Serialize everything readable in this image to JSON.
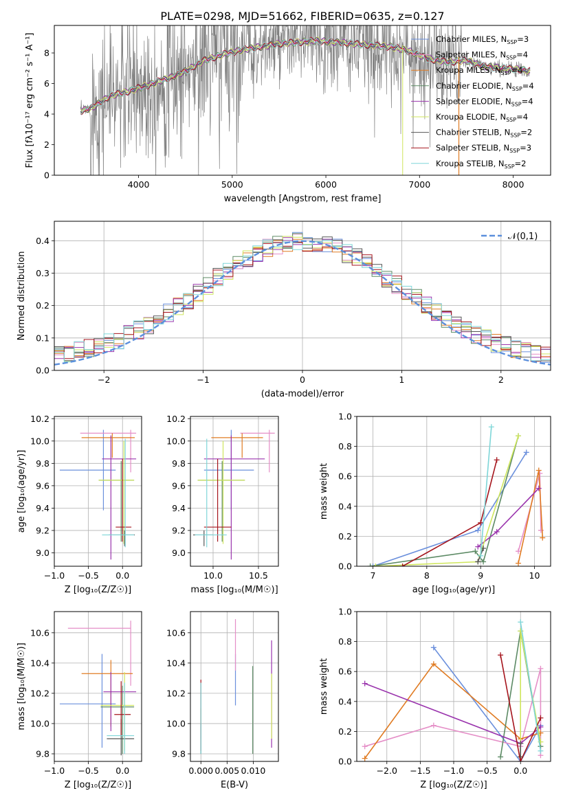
{
  "title": "PLATE=0298, MJD=51662, FIBERID=0635, z=0.127",
  "colors": {
    "Chabrier MILES": "#6a8fdc",
    "Salpeter MILES": "#e58ec7",
    "Kroupa MILES": "#e07b22",
    "Chabrier ELODIE": "#5c8a64",
    "Salpeter ELODIE": "#9a34ad",
    "Kroupa ELODIE": "#cfe65c",
    "Chabrier STELIB": "#555555",
    "Salpeter STELIB": "#a5141c",
    "Kroupa STELIB": "#7ed6d8",
    "spectrum": "#808080",
    "gaussian": "#5b8fdc"
  },
  "chart_data": [
    {
      "id": "spectrum",
      "type": "line",
      "xlabel": "wavelength [Angstrom, rest frame]",
      "ylabel": "Flux [fλ10⁻¹⁷ erg cm⁻² s⁻¹ A⁻¹]",
      "xlim": [
        3100,
        8400
      ],
      "ylim": [
        0,
        9.8
      ],
      "xticks": [
        4000,
        5000,
        6000,
        7000,
        8000
      ],
      "yticks": [
        0,
        2,
        4,
        6,
        8
      ],
      "grid": false,
      "legend_position": "upper-right",
      "legend": [
        {
          "label": "Chabrier MILES, N",
          "sub": "SSP",
          "n": "=3"
        },
        {
          "label": "Salpeter MILES, N",
          "sub": "SSP",
          "n": "=4"
        },
        {
          "label": "Kroupa MILES, N",
          "sub": "SSP",
          "n": "=4"
        },
        {
          "label": "Chabrier ELODIE, N",
          "sub": "SSP",
          "n": "=4"
        },
        {
          "label": "Salpeter ELODIE, N",
          "sub": "SSP",
          "n": "=4"
        },
        {
          "label": "Kroupa ELODIE, N",
          "sub": "SSP",
          "n": "=4"
        },
        {
          "label": "Chabrier STELIB, N",
          "sub": "SSP",
          "n": "=2"
        },
        {
          "label": "Salpeter STELIB, N",
          "sub": "SSP",
          "n": "=3"
        },
        {
          "label": "Kroupa STELIB, N",
          "sub": "SSP",
          "n": "=2"
        }
      ],
      "continuum": [
        [
          3380,
          4.2
        ],
        [
          3500,
          4.4
        ],
        [
          3700,
          5.2
        ],
        [
          3900,
          5.5
        ],
        [
          4100,
          5.9
        ],
        [
          4300,
          6.3
        ],
        [
          4500,
          6.8
        ],
        [
          4700,
          7.5
        ],
        [
          4900,
          7.9
        ],
        [
          5100,
          8.2
        ],
        [
          5300,
          8.4
        ],
        [
          5500,
          8.6
        ],
        [
          5700,
          8.7
        ],
        [
          5900,
          8.8
        ],
        [
          6100,
          8.7
        ],
        [
          6300,
          8.6
        ],
        [
          6500,
          8.5
        ],
        [
          6700,
          8.4
        ],
        [
          6900,
          8.1
        ],
        [
          7100,
          7.6
        ],
        [
          7300,
          7.4
        ],
        [
          7500,
          7.5
        ],
        [
          7700,
          7.1
        ],
        [
          7900,
          7.0
        ],
        [
          8100,
          6.9
        ],
        [
          8180,
          6.8
        ]
      ]
    },
    {
      "id": "residuals",
      "type": "histogram",
      "xlabel": "(data-model)/error",
      "ylabel": "Normed distribution",
      "xlim": [
        -2.5,
        2.5
      ],
      "ylim": [
        0,
        0.46
      ],
      "xticks": [
        -2,
        -1,
        0,
        1,
        2
      ],
      "yticks": [
        0.0,
        0.1,
        0.2,
        0.3,
        0.4
      ],
      "grid": true,
      "legend_label": "𝒩(0,1)",
      "legend_position": "upper-right",
      "bin_width": 0.1
    },
    {
      "id": "age-vs-Z",
      "type": "errorbar",
      "xlabel": "Z [log₁₀(Z/Z☉)]",
      "ylabel": "age  [log₁₀(age/yr)]",
      "xlim": [
        -1.0,
        0.28
      ],
      "ylim": [
        8.88,
        10.22
      ],
      "xticks": [
        -1.0,
        -0.5,
        0.0
      ],
      "yticks": [
        9.0,
        9.2,
        9.4,
        9.6,
        9.8,
        10.0,
        10.2
      ],
      "grid": true,
      "points": [
        {
          "series": "Chabrier MILES",
          "x": -0.28,
          "xlo": -0.92,
          "xhi": -0.1,
          "y": 9.74,
          "ylo": 9.38,
          "yhi": 10.1
        },
        {
          "series": "Salpeter MILES",
          "x": 0.12,
          "xlo": -0.62,
          "xhi": 0.2,
          "y": 10.07,
          "ylo": 9.72,
          "yhi": 10.1
        },
        {
          "series": "Kroupa MILES",
          "x": -0.15,
          "xlo": -0.6,
          "xhi": 0.18,
          "y": 10.03,
          "ylo": 9.85,
          "yhi": 10.07
        },
        {
          "series": "Chabrier ELODIE",
          "x": -0.02,
          "xlo": -0.35,
          "xhi": 0.17,
          "y": 9.65,
          "ylo": 9.1,
          "yhi": 9.82
        },
        {
          "series": "Salpeter ELODIE",
          "x": -0.17,
          "xlo": -0.3,
          "xhi": 0.2,
          "y": 9.84,
          "ylo": 8.94,
          "yhi": 10.05
        },
        {
          "series": "Kroupa ELODIE",
          "x": 0.02,
          "xlo": -0.35,
          "xhi": 0.17,
          "y": 9.65,
          "ylo": 9.08,
          "yhi": 10.0
        },
        {
          "series": "Chabrier STELIB",
          "x": 0.03,
          "xlo": -0.2,
          "xhi": 0.18,
          "y": 9.16,
          "ylo": 9.06,
          "yhi": 9.2
        },
        {
          "series": "Salpeter STELIB",
          "x": 0.0,
          "xlo": -0.1,
          "xhi": 0.13,
          "y": 9.23,
          "ylo": 9.1,
          "yhi": 9.84
        },
        {
          "series": "Kroupa STELIB",
          "x": 0.04,
          "xlo": -0.3,
          "xhi": 0.17,
          "y": 9.16,
          "ylo": 9.05,
          "yhi": 10.02
        }
      ]
    },
    {
      "id": "age-vs-mass",
      "type": "errorbar",
      "xlabel": "mass [log₁₀(M/M☉)]",
      "ylabel": "",
      "xlim": [
        9.75,
        10.72
      ],
      "ylim": [
        8.88,
        10.22
      ],
      "xticks": [
        10.0,
        10.5
      ],
      "yticks": [
        9.0,
        9.2,
        9.4,
        9.6,
        9.8,
        10.0,
        10.2
      ],
      "grid": true,
      "points": [
        {
          "series": "Chabrier MILES",
          "x": 10.2,
          "xlo": 9.9,
          "xhi": 10.45,
          "y": 9.74,
          "ylo": 9.38,
          "yhi": 10.1
        },
        {
          "series": "Salpeter MILES",
          "x": 10.62,
          "xlo": 10.3,
          "xhi": 10.68,
          "y": 10.07,
          "ylo": 9.72,
          "yhi": 10.1
        },
        {
          "series": "Kroupa MILES",
          "x": 10.32,
          "xlo": 9.98,
          "xhi": 10.55,
          "y": 10.03,
          "ylo": 9.85,
          "yhi": 10.07
        },
        {
          "series": "Chabrier ELODIE",
          "x": 10.1,
          "xlo": 9.83,
          "xhi": 10.35,
          "y": 9.65,
          "ylo": 9.1,
          "yhi": 9.82
        },
        {
          "series": "Salpeter ELODIE",
          "x": 10.2,
          "xlo": 9.9,
          "xhi": 10.57,
          "y": 9.84,
          "ylo": 8.94,
          "yhi": 10.05
        },
        {
          "series": "Kroupa ELODIE",
          "x": 10.11,
          "xlo": 9.83,
          "xhi": 10.35,
          "y": 9.65,
          "ylo": 9.08,
          "yhi": 10.0
        },
        {
          "series": "Chabrier STELIB",
          "x": 9.9,
          "xlo": 9.78,
          "xhi": 10.0,
          "y": 9.16,
          "ylo": 9.06,
          "yhi": 9.2
        },
        {
          "series": "Salpeter STELIB",
          "x": 10.05,
          "xlo": 9.9,
          "xhi": 10.2,
          "y": 9.23,
          "ylo": 9.1,
          "yhi": 9.84
        },
        {
          "series": "Kroupa STELIB",
          "x": 9.93,
          "xlo": 9.8,
          "xhi": 10.15,
          "y": 9.16,
          "ylo": 9.05,
          "yhi": 10.02
        }
      ]
    },
    {
      "id": "weight-vs-age",
      "type": "line",
      "xlabel": "age  [log₁₀(age/yr)]",
      "ylabel": "mass weight",
      "xlim": [
        6.7,
        10.3
      ],
      "ylim": [
        0.0,
        1.0
      ],
      "xticks": [
        7,
        8,
        9,
        10
      ],
      "yticks": [
        0.0,
        0.2,
        0.4,
        0.6,
        0.8,
        1.0
      ],
      "grid": true,
      "series": [
        {
          "name": "Chabrier MILES",
          "points": [
            [
              7.0,
              0.0
            ],
            [
              8.95,
              0.24
            ],
            [
              9.85,
              0.76
            ]
          ]
        },
        {
          "name": "Salpeter MILES",
          "points": [
            [
              9.7,
              0.1
            ],
            [
              10.1,
              0.62
            ],
            [
              10.12,
              0.24
            ]
          ]
        },
        {
          "name": "Kroupa MILES",
          "points": [
            [
              9.7,
              0.02
            ],
            [
              10.08,
              0.64
            ],
            [
              10.15,
              0.19
            ]
          ]
        },
        {
          "name": "Chabrier ELODIE",
          "points": [
            [
              6.95,
              0.0
            ],
            [
              8.9,
              0.1
            ],
            [
              9.05,
              0.03
            ],
            [
              9.7,
              0.87
            ]
          ]
        },
        {
          "name": "Salpeter ELODIE",
          "points": [
            [
              8.95,
              0.13
            ],
            [
              9.3,
              0.23
            ],
            [
              10.08,
              0.52
            ]
          ]
        },
        {
          "name": "Kroupa ELODIE",
          "points": [
            [
              7.05,
              0.0
            ],
            [
              8.95,
              0.03
            ],
            [
              9.7,
              0.87
            ]
          ]
        },
        {
          "name": "Chabrier STELIB",
          "points": [
            [
              8.95,
              0.03
            ],
            [
              9.05,
              0.12
            ]
          ]
        },
        {
          "name": "Salpeter STELIB",
          "points": [
            [
              7.55,
              0.0
            ],
            [
              9.0,
              0.29
            ],
            [
              9.3,
              0.71
            ]
          ]
        },
        {
          "name": "Kroupa STELIB",
          "points": [
            [
              9.0,
              0.07
            ],
            [
              9.2,
              0.93
            ]
          ]
        }
      ]
    },
    {
      "id": "mass-vs-Z",
      "type": "errorbar",
      "xlabel": "Z [log₁₀(Z/Z☉)]",
      "ylabel": "mass [log₁₀(M/M☉)]",
      "xlim": [
        -1.0,
        0.28
      ],
      "ylim": [
        9.75,
        10.74
      ],
      "xticks": [
        -1.0,
        -0.5,
        0.0
      ],
      "yticks": [
        9.8,
        10.0,
        10.2,
        10.4,
        10.6
      ],
      "grid": true,
      "points": [
        {
          "series": "Chabrier MILES",
          "x": -0.3,
          "xlo": -0.92,
          "xhi": -0.1,
          "y": 10.13,
          "ylo": 9.84,
          "yhi": 10.46
        },
        {
          "series": "Salpeter MILES",
          "x": 0.12,
          "xlo": -0.8,
          "xhi": 0.12,
          "y": 10.63,
          "ylo": 10.25,
          "yhi": 10.68
        },
        {
          "series": "Kroupa MILES",
          "x": -0.17,
          "xlo": -0.6,
          "xhi": 0.15,
          "y": 10.33,
          "ylo": 9.98,
          "yhi": 10.42
        },
        {
          "series": "Chabrier ELODIE",
          "x": 0.0,
          "xlo": -0.32,
          "xhi": 0.17,
          "y": 10.11,
          "ylo": 9.8,
          "yhi": 10.25
        },
        {
          "series": "Salpeter ELODIE",
          "x": -0.17,
          "xlo": -0.28,
          "xhi": 0.2,
          "y": 10.21,
          "ylo": 9.95,
          "yhi": 10.34
        },
        {
          "series": "Kroupa ELODIE",
          "x": 0.03,
          "xlo": -0.32,
          "xhi": 0.17,
          "y": 10.12,
          "ylo": 9.82,
          "yhi": 10.34
        },
        {
          "series": "Chabrier STELIB",
          "x": -0.02,
          "xlo": -0.23,
          "xhi": 0.17,
          "y": 9.9,
          "ylo": 9.79,
          "yhi": 10.03
        },
        {
          "series": "Salpeter STELIB",
          "x": -0.02,
          "xlo": -0.12,
          "xhi": 0.12,
          "y": 10.06,
          "ylo": 9.92,
          "yhi": 10.28
        },
        {
          "series": "Kroupa STELIB",
          "x": 0.03,
          "xlo": -0.23,
          "xhi": 0.17,
          "y": 9.92,
          "ylo": 9.8,
          "yhi": 10.27
        }
      ]
    },
    {
      "id": "mass-vs-ebv",
      "type": "errorbar",
      "xlabel": "E(B-V)",
      "ylabel": "",
      "xlim": [
        -0.002,
        0.0148
      ],
      "ylim": [
        9.75,
        10.74
      ],
      "xticks": [
        0.0,
        0.005,
        0.01
      ],
      "yticks": [
        9.8,
        10.0,
        10.2,
        10.4,
        10.6
      ],
      "grid": true,
      "points": [
        {
          "series": "Chabrier MILES",
          "x": 0.0066,
          "xlo": 0.0066,
          "xhi": 0.0066,
          "y": 10.13,
          "ylo": 10.12,
          "yhi": 10.46
        },
        {
          "series": "Salpeter MILES",
          "x": 0.0066,
          "xlo": 0.0066,
          "xhi": 0.0066,
          "y": 10.6,
          "ylo": 10.35,
          "yhi": 10.69
        },
        {
          "series": "Kroupa MILES",
          "x": 0.0,
          "xlo": 0.0,
          "xhi": 0.0,
          "y": 10.0,
          "ylo": 9.9,
          "yhi": 10.1
        },
        {
          "series": "Chabrier ELODIE",
          "x": 0.0099,
          "xlo": 0.0099,
          "xhi": 0.0099,
          "y": 10.1,
          "ylo": 9.8,
          "yhi": 10.38
        },
        {
          "series": "Salpeter ELODIE",
          "x": 0.0135,
          "xlo": 0.0135,
          "xhi": 0.0135,
          "y": 10.2,
          "ylo": 9.84,
          "yhi": 10.55
        },
        {
          "series": "Kroupa ELODIE",
          "x": 0.0135,
          "xlo": 0.0135,
          "xhi": 0.0135,
          "y": 10.1,
          "ylo": 9.9,
          "yhi": 10.33
        },
        {
          "series": "Chabrier STELIB",
          "x": 0.0,
          "xlo": 0.0,
          "xhi": 0.0,
          "y": 9.9,
          "ylo": 9.8,
          "yhi": 10.0
        },
        {
          "series": "Salpeter STELIB",
          "x": 0.0,
          "xlo": 0.0,
          "xhi": 0.0,
          "y": 10.1,
          "ylo": 9.82,
          "yhi": 10.29
        },
        {
          "series": "Kroupa STELIB",
          "x": 0.0,
          "xlo": 0.0,
          "xhi": 0.0,
          "y": 10.0,
          "ylo": 9.8,
          "yhi": 10.27
        }
      ]
    },
    {
      "id": "weight-vs-Z",
      "type": "line",
      "xlabel": "Z [log₁₀(Z/Z☉)]",
      "ylabel": "mass weight",
      "xlim": [
        -2.45,
        0.45
      ],
      "ylim": [
        0.0,
        1.0
      ],
      "xticks": [
        -2.0,
        -1.5,
        -1.0,
        -0.5,
        0.0
      ],
      "yticks": [
        0.0,
        0.2,
        0.4,
        0.6,
        0.8,
        1.0
      ],
      "grid": true,
      "series": [
        {
          "name": "Chabrier MILES",
          "points": [
            [
              -1.3,
              0.76
            ],
            [
              0.0,
              0.0
            ],
            [
              0.3,
              0.24
            ]
          ]
        },
        {
          "name": "Salpeter MILES",
          "points": [
            [
              -2.33,
              0.1
            ],
            [
              -1.3,
              0.24
            ],
            [
              0.0,
              0.1
            ],
            [
              0.3,
              0.62
            ],
            [
              0.3,
              0.04
            ]
          ]
        },
        {
          "name": "Kroupa MILES",
          "points": [
            [
              -2.33,
              0.02
            ],
            [
              -1.3,
              0.65
            ],
            [
              0.0,
              0.15
            ],
            [
              0.3,
              0.19
            ]
          ]
        },
        {
          "name": "Chabrier ELODIE",
          "points": [
            [
              -0.3,
              0.03
            ],
            [
              0.0,
              0.87
            ],
            [
              0.3,
              0.1
            ]
          ]
        },
        {
          "name": "Salpeter ELODIE",
          "points": [
            [
              -2.33,
              0.52
            ],
            [
              0.0,
              0.12
            ],
            [
              0.3,
              0.23
            ]
          ]
        },
        {
          "name": "Kroupa ELODIE",
          "points": [
            [
              0.0,
              0.03
            ],
            [
              0.0,
              0.87
            ],
            [
              0.3,
              0.13
            ]
          ]
        },
        {
          "name": "Chabrier STELIB",
          "points": [
            [
              0.0,
              0.03
            ],
            [
              0.0,
              0.12
            ]
          ]
        },
        {
          "name": "Salpeter STELIB",
          "points": [
            [
              -0.3,
              0.71
            ],
            [
              0.0,
              0.0
            ],
            [
              0.3,
              0.29
            ]
          ]
        },
        {
          "name": "Kroupa STELIB",
          "points": [
            [
              0.0,
              0.93
            ],
            [
              0.3,
              0.07
            ]
          ]
        }
      ]
    }
  ]
}
